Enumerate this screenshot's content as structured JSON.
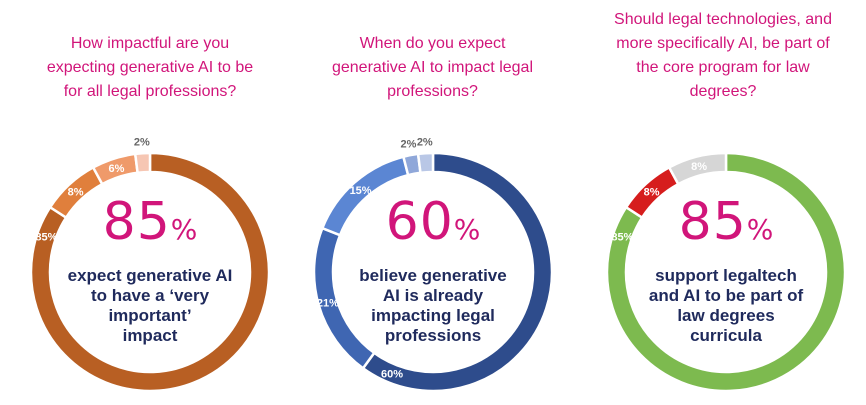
{
  "charts": [
    {
      "question": [
        "How impactful are you",
        "expecting generative AI to be",
        "for all legal professions?"
      ],
      "big_number": "85",
      "big_unit": "%",
      "caption": [
        "expect generative AI",
        "to have a ‘very",
        "important’",
        "impact"
      ]
    },
    {
      "question": [
        "When do you expect",
        "generative AI to impact legal",
        "professions?"
      ],
      "big_number": "60",
      "big_unit": "%",
      "caption": [
        "believe generative",
        "AI is already",
        "impacting legal",
        "professions"
      ]
    },
    {
      "question": [
        "Should legal technologies, and",
        "more specifically AI, be part of",
        "the core program for law",
        "degrees?"
      ],
      "big_number": "85",
      "big_unit": "%",
      "caption": [
        "support legaltech",
        "and AI to be part of",
        "law degrees",
        "curricula"
      ]
    }
  ],
  "chart_data": [
    {
      "type": "pie",
      "labels": [
        "85%",
        "8%",
        "6%",
        "2%"
      ],
      "values": [
        85,
        8,
        6,
        2
      ],
      "colors": [
        "#b85f23",
        "#e07f3c",
        "#ef9a6a",
        "#f6c6b3"
      ]
    },
    {
      "type": "pie",
      "labels": [
        "60%",
        "21%",
        "15%",
        "2%",
        "2%"
      ],
      "values": [
        60,
        21,
        15,
        2,
        2
      ],
      "colors": [
        "#2e4c8c",
        "#3f66b2",
        "#5b86d3",
        "#8fa7d9",
        "#b9c7e6"
      ]
    },
    {
      "type": "pie",
      "labels": [
        "85%",
        "8%",
        "8%"
      ],
      "values": [
        85,
        8,
        8
      ],
      "colors": [
        "#7dba4f",
        "#d61d1d",
        "#d6d6d6"
      ]
    }
  ]
}
